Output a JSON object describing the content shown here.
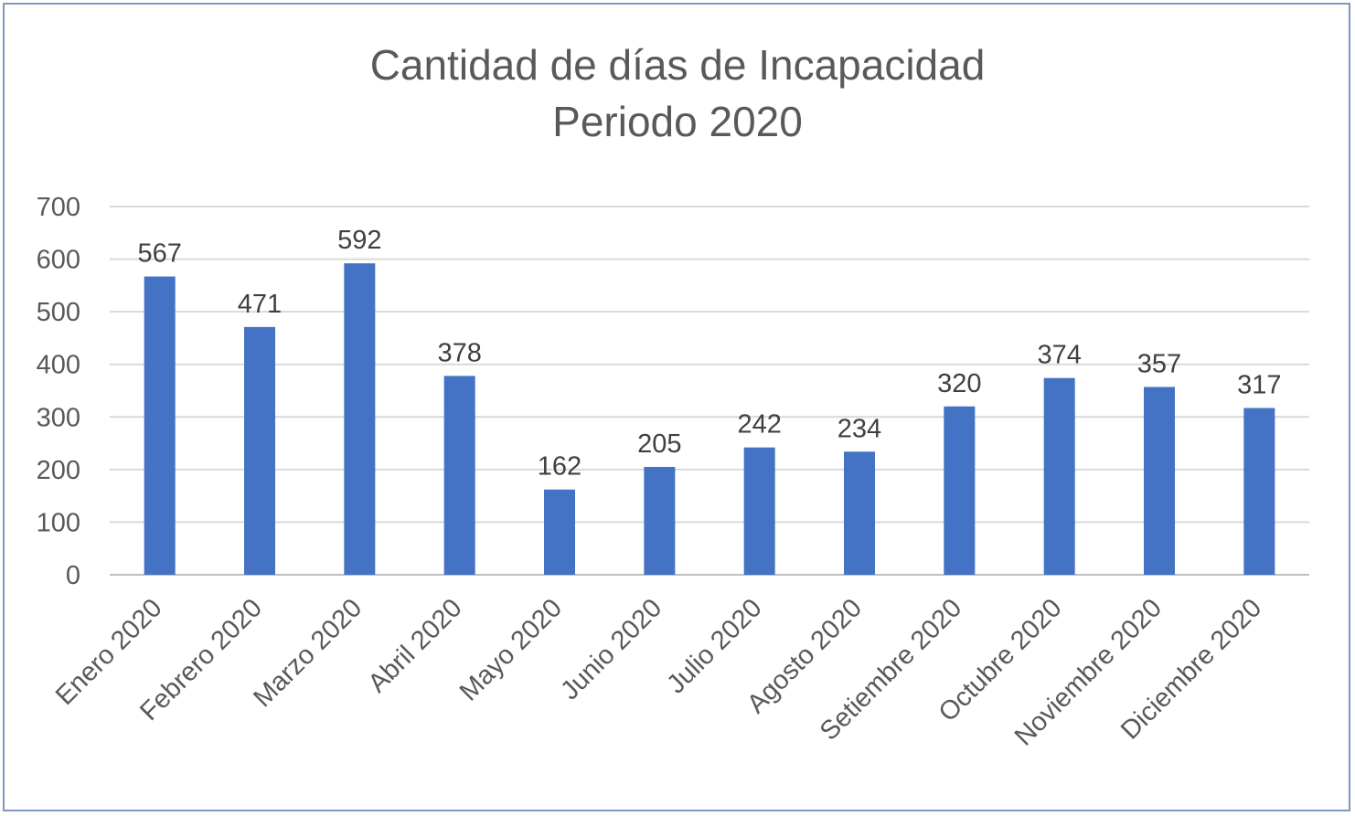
{
  "chart_data": {
    "type": "bar",
    "title_lines": [
      "Cantidad de días de Incapacidad",
      "Periodo 2020"
    ],
    "categories": [
      "Enero 2020",
      "Febrero 2020",
      "Marzo 2020",
      "Abril 2020",
      "Mayo 2020",
      "Junio 2020",
      "Julio 2020",
      "Agosto 2020",
      "Setiembre 2020",
      "Octubre 2020",
      "Noviembre 2020",
      "Diciembre 2020"
    ],
    "values": [
      567,
      471,
      592,
      378,
      162,
      205,
      242,
      234,
      320,
      374,
      357,
      317
    ],
    "ylim": [
      0,
      700
    ],
    "yticks": [
      0,
      100,
      200,
      300,
      400,
      500,
      600,
      700
    ],
    "grid": true,
    "data_labels": true,
    "legend": "none",
    "colors": {
      "bar": "#4472c4",
      "grid": "#d9d9d9",
      "frame": "#7f97c0"
    }
  }
}
